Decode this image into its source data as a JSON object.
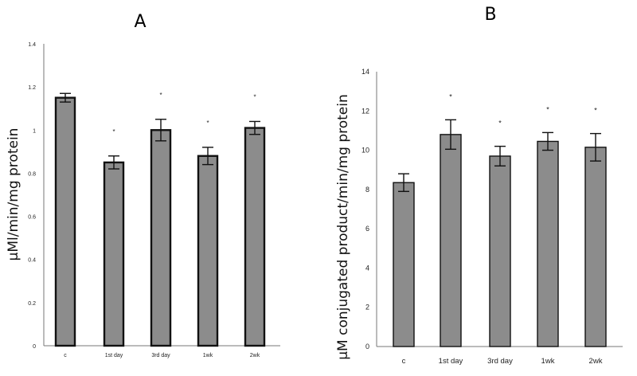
{
  "chart_data": [
    {
      "type": "bar",
      "panel": "A",
      "ylabel": "μMl/min/mg protein",
      "categories": [
        "c",
        "1st day",
        "3rd day",
        "1wk",
        "2wk"
      ],
      "values": [
        1.15,
        0.85,
        1.0,
        0.88,
        1.01
      ],
      "errors": [
        0.02,
        0.03,
        0.05,
        0.04,
        0.03
      ],
      "significance": [
        "",
        "*",
        "*",
        "*",
        "*"
      ],
      "ylim": [
        0,
        1.4
      ],
      "yticks": [
        "0",
        "0.2",
        "0.4",
        "0.6",
        "0.8",
        "1",
        "1.2",
        "1.4"
      ],
      "bar_color": "#8c8c8c",
      "grid": false
    },
    {
      "type": "bar",
      "panel": "B",
      "ylabel": "μM conjugated product/min/mg protein",
      "categories": [
        "c",
        "1st day",
        "3rd day",
        "1wk",
        "2wk"
      ],
      "values": [
        8.35,
        10.8,
        9.7,
        10.45,
        10.15
      ],
      "errors": [
        0.45,
        0.75,
        0.5,
        0.45,
        0.7
      ],
      "significance": [
        "",
        "*",
        "*",
        "*",
        "*"
      ],
      "ylim": [
        0,
        14
      ],
      "yticks": [
        "0",
        "2",
        "4",
        "6",
        "8",
        "10",
        "12",
        "14"
      ],
      "bar_color": "#8c8c8c",
      "grid": false
    }
  ]
}
